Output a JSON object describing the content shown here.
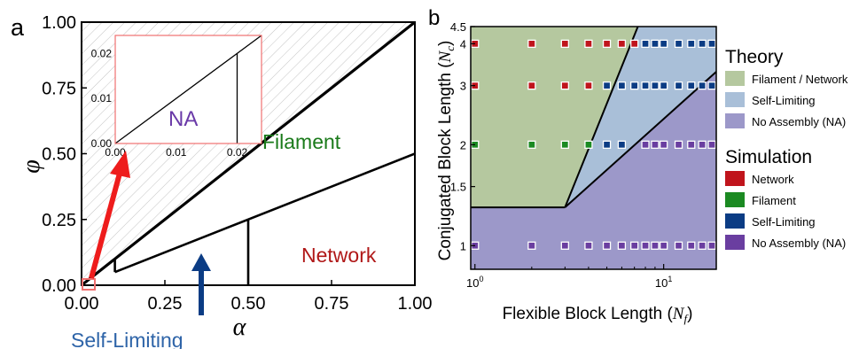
{
  "colors": {
    "filament_network_region": "#b5c89f",
    "self_limiting_region": "#a9bfd8",
    "no_assembly_region": "#9c98c9",
    "network_marker": "#c0141c",
    "filament_marker": "#1b8a22",
    "self_limiting_marker": "#0b3c84",
    "no_assembly_marker": "#6a3ea0",
    "filament_label": "#1a7a1a",
    "network_label": "#b01818",
    "selflimiting_label": "#2e64a8",
    "na_label": "#6a3aa8",
    "red_arrow": "#ee1c1c",
    "blue_arrow": "#0b3c84",
    "inset_border": "#f07070"
  },
  "chart_data": [
    {
      "panel": "a",
      "type": "line",
      "xlabel": "α",
      "ylabel": "φ",
      "xlim": [
        0,
        1
      ],
      "ylim": [
        0,
        1
      ],
      "xticks": [
        "0.00",
        "0.25",
        "0.50",
        "0.75",
        "1.00"
      ],
      "yticks": [
        "0.00",
        "0.25",
        "0.50",
        "0.75",
        "1.00"
      ],
      "hatched_region": "above phi = alpha",
      "boundaries": [
        {
          "x": [
            0,
            1
          ],
          "y": [
            0,
            1
          ]
        },
        {
          "x": [
            0.1,
            1
          ],
          "y": [
            0.05,
            0.5
          ]
        },
        {
          "x": [
            0.1,
            0.1
          ],
          "y": [
            0.05,
            0.1
          ]
        },
        {
          "x": [
            0.5,
            0.5
          ],
          "y": [
            0,
            0.25
          ]
        }
      ],
      "region_labels": {
        "filament": "Filament",
        "network": "Network",
        "self_limiting": "Self-Limiting"
      },
      "inset": {
        "xlim": [
          0,
          0.024
        ],
        "ylim": [
          0,
          0.024
        ],
        "xticks": [
          "0.00",
          "0.01",
          "0.02"
        ],
        "yticks": [
          "0.00",
          "0.01",
          "0.02"
        ],
        "label": "NA",
        "boundaries": [
          {
            "x": [
              0,
              0.024
            ],
            "y": [
              0,
              0.024
            ]
          },
          {
            "x": [
              0.02,
              0.02
            ],
            "y": [
              0,
              0.02
            ]
          }
        ]
      }
    },
    {
      "panel": "b",
      "type": "scatter",
      "xlabel": "Flexible Block Length",
      "xlabel_symbol": "N",
      "xlabel_sub": "f",
      "ylabel": "Conjugated Block Length",
      "ylabel_symbol": "N",
      "ylabel_sub": "c",
      "xscale": "log",
      "yscale": "log",
      "xlim": [
        0.95,
        19
      ],
      "ylim": [
        0.85,
        4.5
      ],
      "xticks": [
        {
          "value": 1,
          "label": "10",
          "sup": "0"
        },
        {
          "value": 10,
          "label": "10",
          "sup": "1"
        }
      ],
      "yticks": [
        "1",
        "1.5",
        "2",
        "3",
        "4",
        "4.5"
      ],
      "regions": [
        {
          "name": "Filament / Network",
          "points": [
            [
              0.95,
              1.3
            ],
            [
              3,
              1.3
            ],
            [
              7.3,
              4.5
            ],
            [
              0.95,
              4.5
            ]
          ]
        },
        {
          "name": "Self-Limiting",
          "points": [
            [
              3,
              1.3
            ],
            [
              19,
              3.3
            ],
            [
              19,
              4.5
            ],
            [
              7.3,
              4.5
            ]
          ]
        },
        {
          "name": "No Assembly (NA)",
          "points": [
            [
              0.95,
              0.85
            ],
            [
              19,
              0.85
            ],
            [
              19,
              3.3
            ],
            [
              3,
              1.3
            ],
            [
              0.95,
              1.3
            ]
          ]
        }
      ],
      "series": [
        {
          "name": "Network",
          "color": "#c0141c",
          "points": [
            [
              1,
              4
            ],
            [
              2,
              4
            ],
            [
              3,
              4
            ],
            [
              4,
              4
            ],
            [
              5,
              4
            ],
            [
              6,
              4
            ],
            [
              7,
              4
            ],
            [
              1,
              3
            ],
            [
              2,
              3
            ],
            [
              3,
              3
            ],
            [
              4,
              3
            ]
          ]
        },
        {
          "name": "Filament",
          "color": "#1b8a22",
          "points": [
            [
              1,
              2
            ],
            [
              2,
              2
            ],
            [
              3,
              2
            ],
            [
              4,
              2
            ]
          ]
        },
        {
          "name": "Self-Limiting",
          "color": "#0b3c84",
          "points": [
            [
              8,
              4
            ],
            [
              9,
              4
            ],
            [
              10,
              4
            ],
            [
              12,
              4
            ],
            [
              14,
              4
            ],
            [
              16,
              4
            ],
            [
              18,
              4
            ],
            [
              5,
              3
            ],
            [
              6,
              3
            ],
            [
              7,
              3
            ],
            [
              8,
              3
            ],
            [
              9,
              3
            ],
            [
              10,
              3
            ],
            [
              12,
              3
            ],
            [
              14,
              3
            ],
            [
              16,
              3
            ],
            [
              18,
              3
            ],
            [
              5,
              2
            ],
            [
              6,
              2
            ]
          ]
        },
        {
          "name": "No Assembly (NA)",
          "color": "#6a3ea0",
          "points": [
            [
              8,
              2
            ],
            [
              9,
              2
            ],
            [
              10,
              2
            ],
            [
              12,
              2
            ],
            [
              14,
              2
            ],
            [
              16,
              2
            ],
            [
              18,
              2
            ],
            [
              1,
              1
            ],
            [
              2,
              1
            ],
            [
              3,
              1
            ],
            [
              4,
              1
            ],
            [
              5,
              1
            ],
            [
              6,
              1
            ],
            [
              7,
              1
            ],
            [
              8,
              1
            ],
            [
              9,
              1
            ],
            [
              10,
              1
            ],
            [
              12,
              1
            ],
            [
              14,
              1
            ],
            [
              16,
              1
            ],
            [
              18,
              1
            ]
          ]
        }
      ],
      "legend": {
        "theory_title": "Theory",
        "theory_items": [
          "Filament / Network",
          "Self-Limiting",
          "No Assembly (NA)"
        ],
        "simulation_title": "Simulation",
        "simulation_items": [
          "Network",
          "Filament",
          "Self-Limiting",
          "No Assembly (NA)"
        ]
      }
    }
  ],
  "panel_labels": {
    "a": "a",
    "b": "b"
  }
}
